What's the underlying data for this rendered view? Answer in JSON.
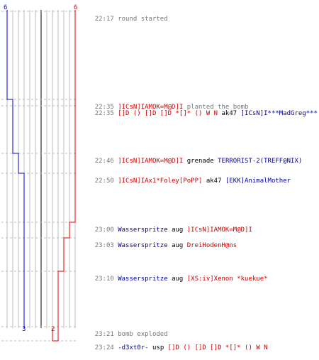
{
  "score": {
    "left_start": "6",
    "right_start": "6",
    "left_end": "3",
    "right_end": "2"
  },
  "events": [
    {
      "time": "22:17",
      "parts": [
        {
          "text": "round started",
          "color": "gray"
        }
      ]
    },
    {
      "time": "22:35",
      "parts": [
        {
          "text": "]ICsN]IAMOK=M@D]I",
          "color": "red"
        },
        {
          "text": " planted the bomb",
          "color": "gray"
        }
      ]
    },
    {
      "time": "22:35",
      "parts": [
        {
          "text": "[]D () []D []D *[]* () W N",
          "color": "red"
        },
        {
          "text": " ak47 ",
          "color": "black"
        },
        {
          "text": "]ICsN]I***MadGreg***",
          "color": "blue"
        }
      ]
    },
    {
      "time": "22:46",
      "parts": [
        {
          "text": "]ICsN]IAMOK=M@D]I",
          "color": "red"
        },
        {
          "text": " grenade ",
          "color": "black"
        },
        {
          "text": "TERRORIST-2(TREFF@NIX)",
          "color": "blue"
        }
      ]
    },
    {
      "time": "22:50",
      "parts": [
        {
          "text": "]ICsN]IAx1*Foley[PoPP]",
          "color": "red"
        },
        {
          "text": " ak47 ",
          "color": "black"
        },
        {
          "text": "[EKK]AnimalMother",
          "color": "blue"
        }
      ]
    },
    {
      "time": "23:00",
      "parts": [
        {
          "text": "Wasserspritze",
          "color": "blue"
        },
        {
          "text": " aug ",
          "color": "black"
        },
        {
          "text": "]ICsN]IAMOK=M@D]I",
          "color": "red"
        }
      ]
    },
    {
      "time": "23:03",
      "parts": [
        {
          "text": "Wasserspritze",
          "color": "blue"
        },
        {
          "text": " aug ",
          "color": "black"
        },
        {
          "text": "DreiHodenH@ns",
          "color": "red"
        }
      ]
    },
    {
      "time": "23:10",
      "parts": [
        {
          "text": "Wasserspritze",
          "color": "blue"
        },
        {
          "text": " aug ",
          "color": "black"
        },
        {
          "text": "[XS:iv]Xenon *kuekue*",
          "color": "red"
        }
      ]
    },
    {
      "time": "23:21",
      "parts": [
        {
          "text": "bomb exploded",
          "color": "gray"
        }
      ]
    },
    {
      "time": "23:24",
      "parts": [
        {
          "text": "-d3xt0r-",
          "color": "blue"
        },
        {
          "text": " usp ",
          "color": "black"
        },
        {
          "text": "[]D () []D []D *[]* () W N",
          "color": "red"
        }
      ]
    }
  ],
  "colors": {
    "blue_team": "#0000cc",
    "red_team": "#dd0000",
    "grid": "#bbbbbb",
    "dash": "#bbbbbb",
    "timestamp": "#777777"
  }
}
